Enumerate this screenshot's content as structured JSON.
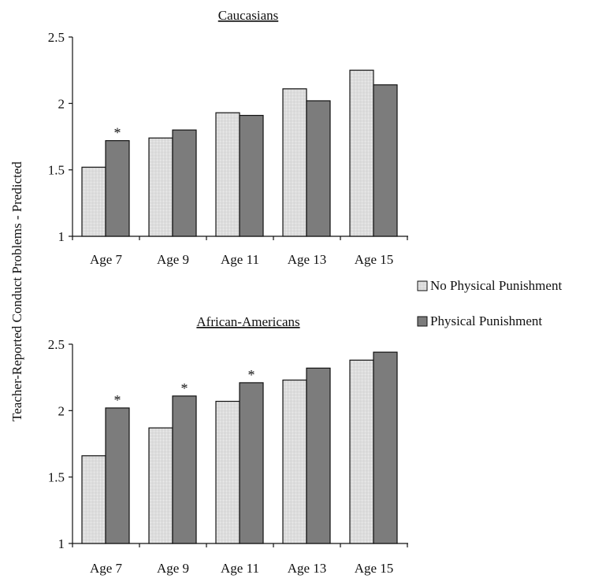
{
  "chart_data": [
    {
      "type": "bar",
      "title": "Caucasians",
      "categories": [
        "Age 7",
        "Age 9",
        "Age 11",
        "Age 13",
        "Age 15"
      ],
      "series": [
        {
          "name": "No Physical Punishment",
          "values": [
            1.52,
            1.74,
            1.93,
            2.11,
            2.25
          ]
        },
        {
          "name": "Physical Punishment",
          "values": [
            1.72,
            1.8,
            1.91,
            2.02,
            2.14
          ]
        }
      ],
      "significance": [
        "*",
        "",
        "",
        "",
        ""
      ],
      "ylim": [
        1,
        2.5
      ],
      "yticks": [
        "1",
        "1.5",
        "2",
        "2.5"
      ]
    },
    {
      "type": "bar",
      "title": "African-Americans",
      "categories": [
        "Age 7",
        "Age 9",
        "Age 11",
        "Age 13",
        "Age 15"
      ],
      "series": [
        {
          "name": "No Physical Punishment",
          "values": [
            1.66,
            1.87,
            2.07,
            2.23,
            2.38
          ]
        },
        {
          "name": "Physical Punishment",
          "values": [
            2.02,
            2.11,
            2.21,
            2.32,
            2.44
          ]
        }
      ],
      "significance": [
        "*",
        "*",
        "*",
        "",
        ""
      ],
      "ylim": [
        1,
        2.5
      ],
      "yticks": [
        "1",
        "1.5",
        "2",
        "2.5"
      ]
    }
  ],
  "ylabel": "Teacher-Reported Conduct Problems - Predicted",
  "legend": {
    "placement": "right",
    "items": [
      {
        "label": "No Physical Punishment",
        "style": "hatched-light"
      },
      {
        "label": "Physical Punishment",
        "style": "solid-gray"
      }
    ]
  },
  "colors": {
    "no_punishment_fill": "#e6e6e6",
    "punishment_fill": "#7c7c7c",
    "edge": "#111111"
  }
}
